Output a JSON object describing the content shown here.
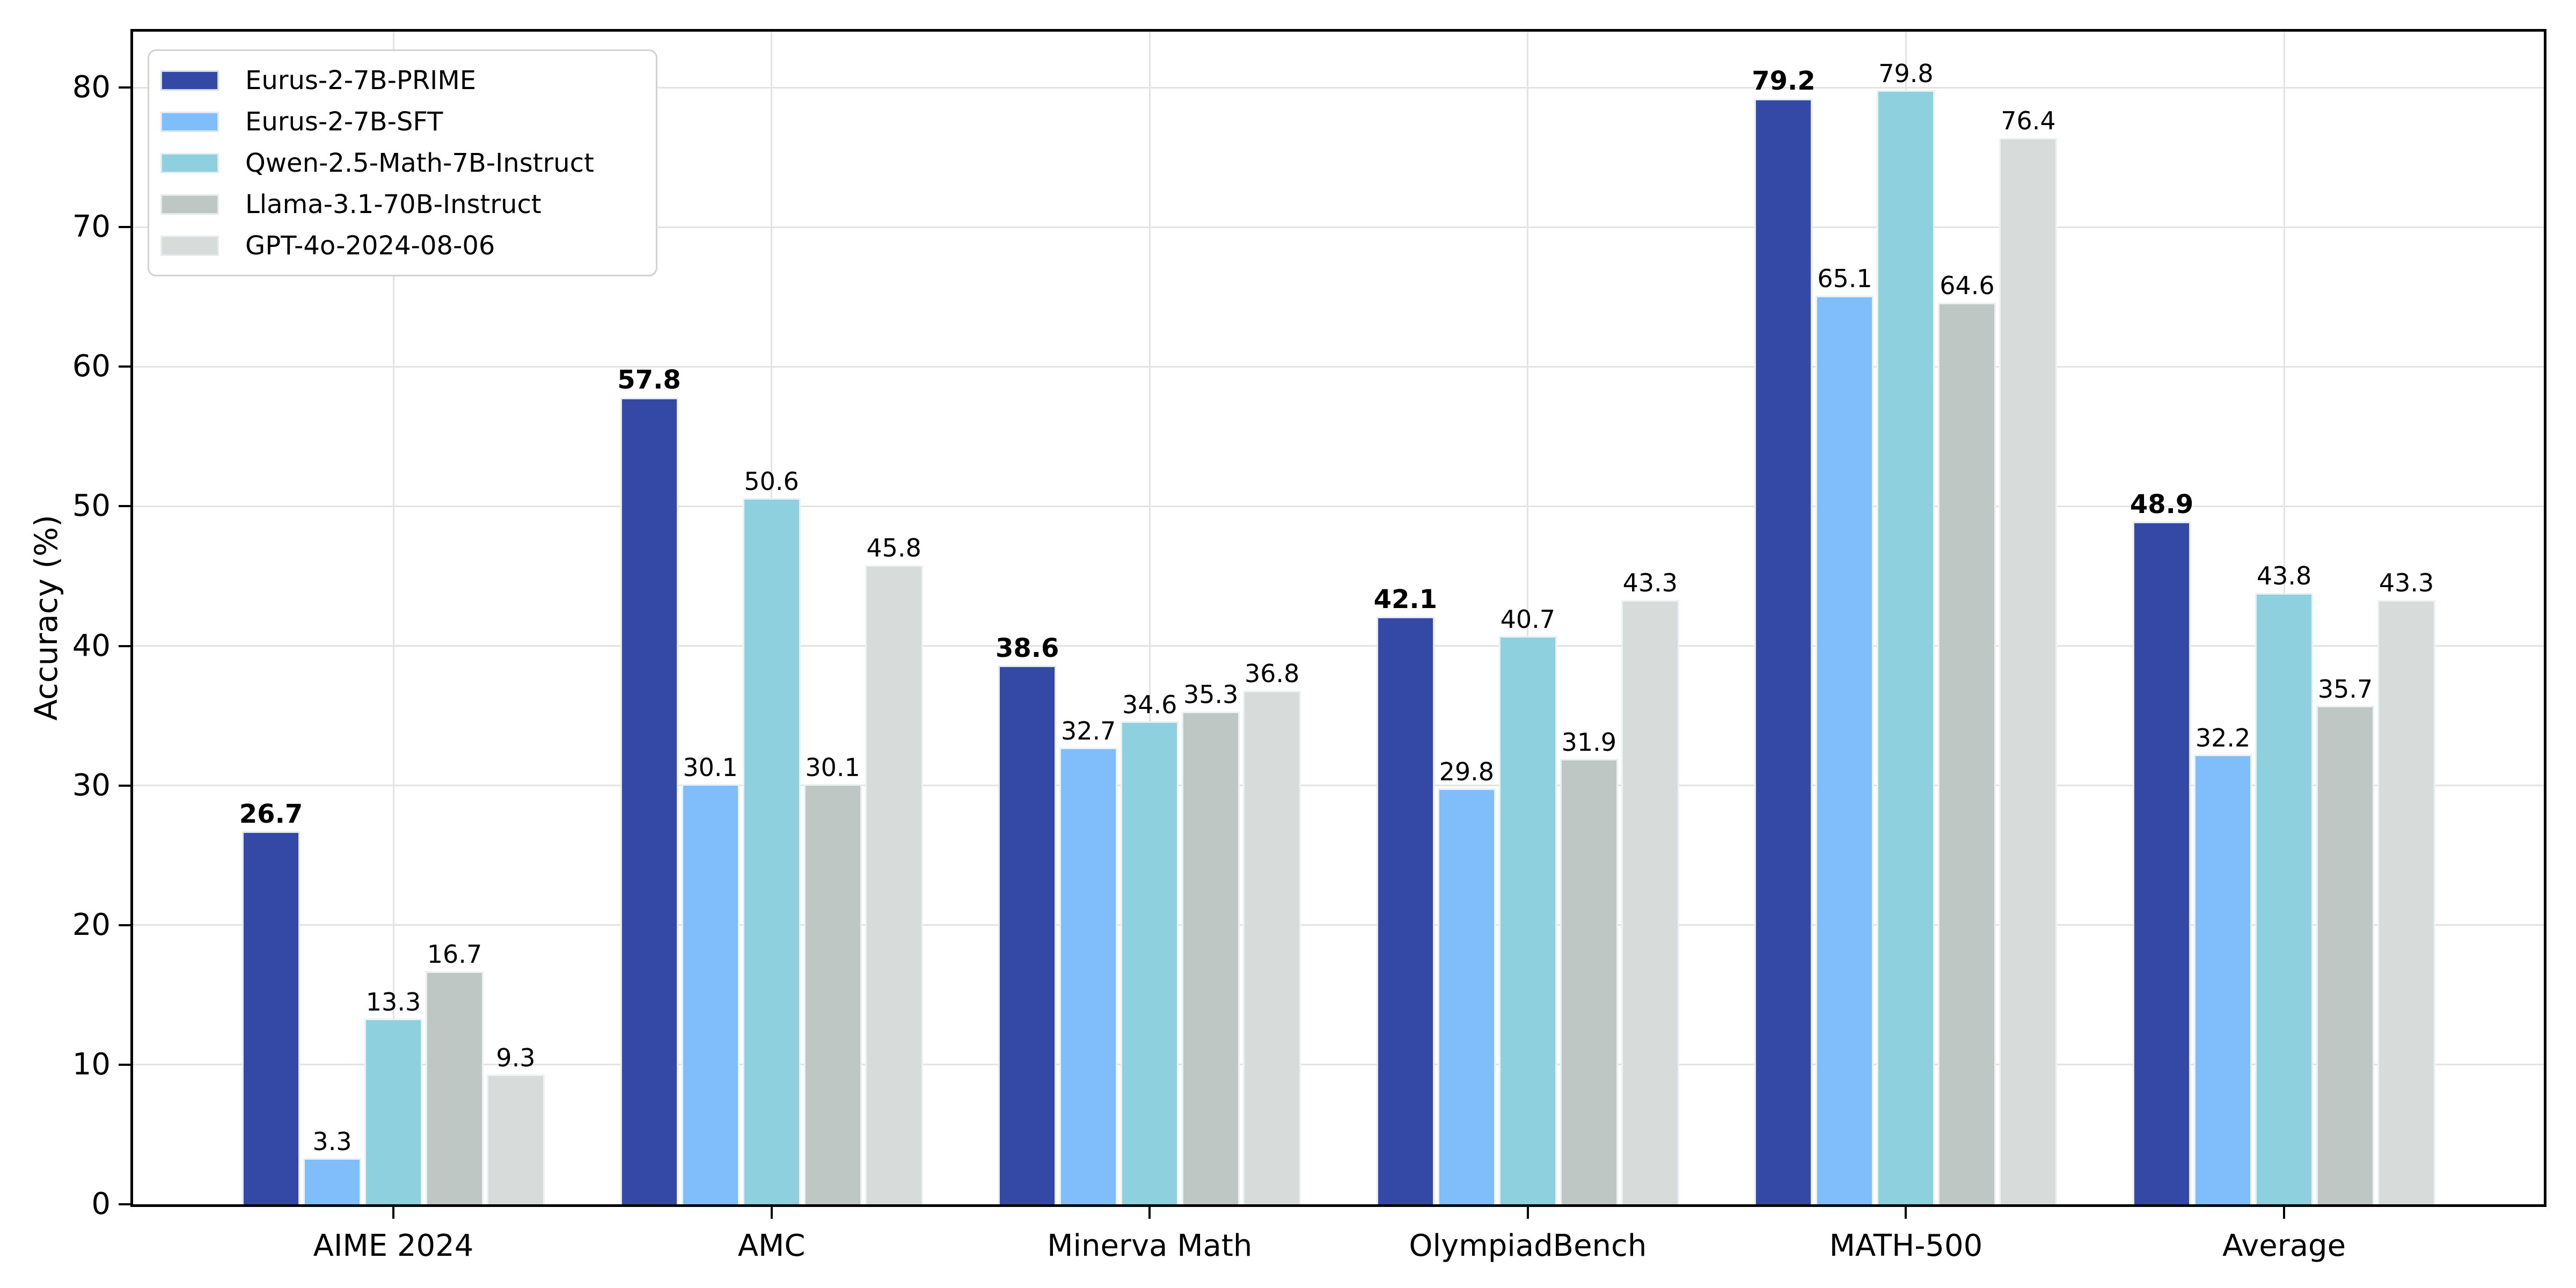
{
  "figure": {
    "ylabel": "Accuracy (%)"
  },
  "chart_data": {
    "type": "bar",
    "title": "",
    "xlabel": "",
    "ylabel": "Accuracy (%)",
    "categories": [
      "AIME 2024",
      "AMC",
      "Minerva Math",
      "OlympiadBench",
      "MATH-500",
      "Average"
    ],
    "series": [
      {
        "name": "Eurus-2-7B-PRIME",
        "color": "#3449A5",
        "label_bold": true,
        "values": [
          26.7,
          57.8,
          38.6,
          42.1,
          79.2,
          48.9
        ]
      },
      {
        "name": "Eurus-2-7B-SFT",
        "color": "#7FBDFB",
        "label_bold": false,
        "values": [
          3.3,
          30.1,
          32.7,
          29.8,
          65.1,
          32.2
        ]
      },
      {
        "name": "Qwen-2.5-Math-7B-Instruct",
        "color": "#8FD0DF",
        "label_bold": false,
        "values": [
          13.3,
          50.6,
          34.6,
          40.7,
          79.8,
          43.8
        ]
      },
      {
        "name": "Llama-3.1-70B-Instruct",
        "color": "#BFC7C5",
        "label_bold": false,
        "values": [
          16.7,
          30.1,
          35.3,
          31.9,
          64.6,
          35.7
        ]
      },
      {
        "name": "GPT-4o-2024-08-06",
        "color": "#D7DCDA",
        "label_bold": false,
        "values": [
          9.3,
          45.8,
          36.8,
          43.3,
          76.4,
          43.3
        ]
      }
    ],
    "ylim": [
      0,
      84
    ],
    "yticks": [
      0,
      10,
      20,
      30,
      40,
      50,
      60,
      70,
      80
    ],
    "grid": true,
    "value_labels": true,
    "value_label_decimals": 1,
    "legend_position": "upper left",
    "colors": {
      "spine": "#000000",
      "gridline": "#e3e3e3",
      "bar_edge": "#edf3f6",
      "legend_border": "#d2d2d2",
      "background": "#ffffff",
      "text": "#000000"
    }
  }
}
